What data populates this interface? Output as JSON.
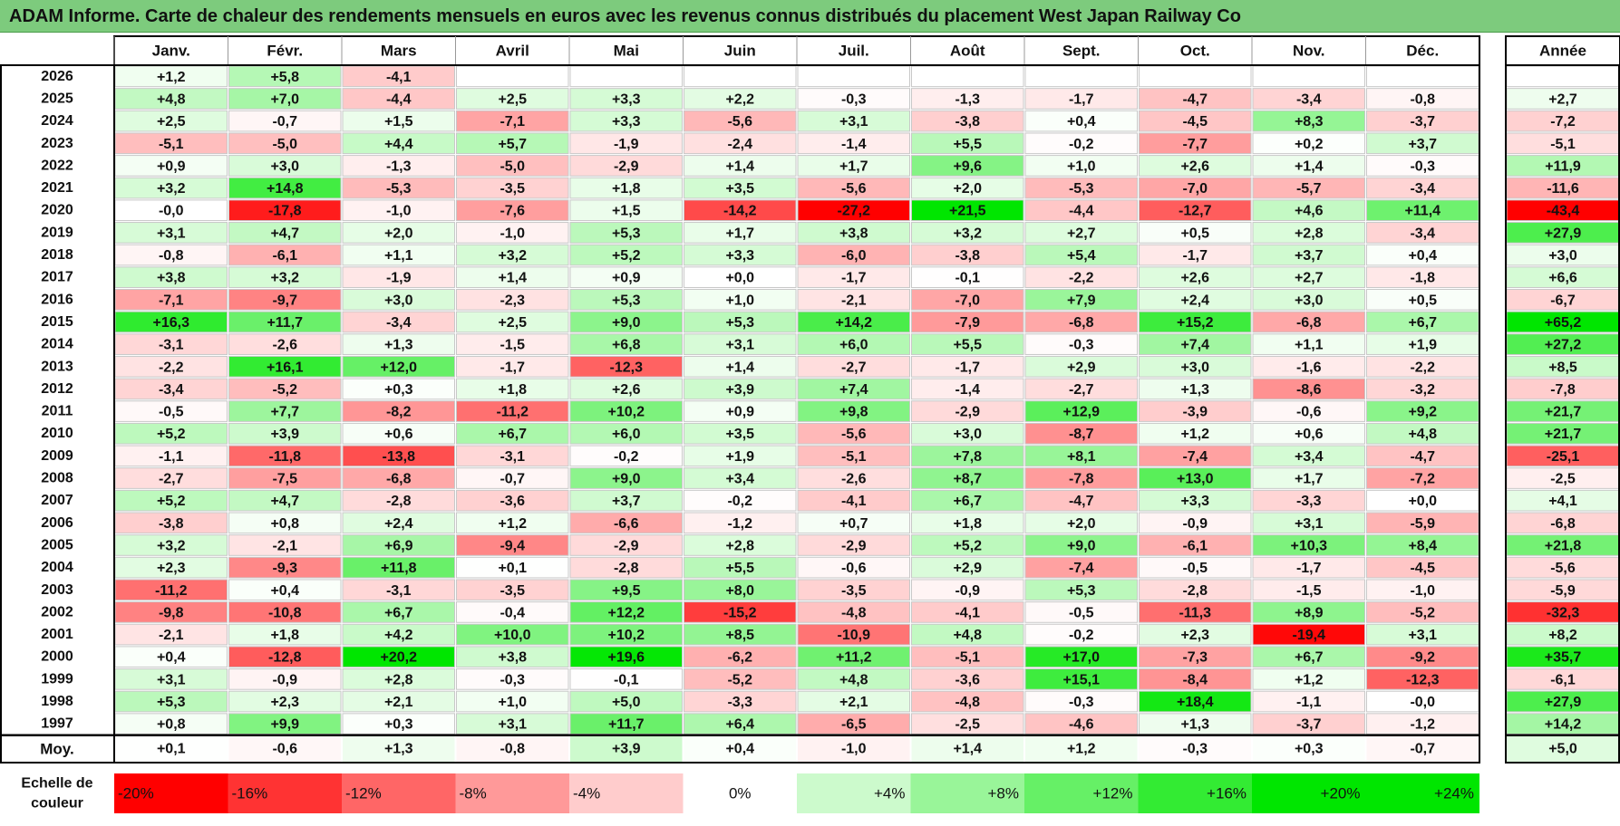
{
  "title": "ADAM Informe. Carte de chaleur des rendements mensuels en euros avec les revenus connus distribués du placement West Japan Railway Co",
  "chart_data": {
    "type": "heatmap",
    "title": "ADAM Informe. Carte de chaleur des rendements mensuels en euros avec les revenus connus distribués du placement West Japan Railway Co",
    "columns": [
      "Janv.",
      "Févr.",
      "Mars",
      "Avril",
      "Mai",
      "Juin",
      "Juil.",
      "Août",
      "Sept.",
      "Oct.",
      "Nov.",
      "Déc."
    ],
    "year_header": "Année",
    "rows": [
      {
        "year": "2026",
        "values": [
          "+1,2",
          "+5,8",
          "-4,1",
          "",
          "",
          "",
          "",
          "",
          "",
          "",
          "",
          ""
        ],
        "annual": ""
      },
      {
        "year": "2025",
        "values": [
          "+4,8",
          "+7,0",
          "-4,4",
          "+2,5",
          "+3,3",
          "+2,2",
          "-0,3",
          "-1,3",
          "-1,7",
          "-4,7",
          "-3,4",
          "-0,8"
        ],
        "annual": "+2,7"
      },
      {
        "year": "2024",
        "values": [
          "+2,5",
          "-0,7",
          "+1,5",
          "-7,1",
          "+3,3",
          "-5,6",
          "+3,1",
          "-3,8",
          "+0,4",
          "-4,5",
          "+8,3",
          "-3,7"
        ],
        "annual": "-7,2"
      },
      {
        "year": "2023",
        "values": [
          "-5,1",
          "-5,0",
          "+4,4",
          "+5,7",
          "-1,9",
          "-2,4",
          "-1,4",
          "+5,5",
          "-0,2",
          "-7,7",
          "+0,2",
          "+3,7"
        ],
        "annual": "-5,1"
      },
      {
        "year": "2022",
        "values": [
          "+0,9",
          "+3,0",
          "-1,3",
          "-5,0",
          "-2,9",
          "+1,4",
          "+1,7",
          "+9,6",
          "+1,0",
          "+2,6",
          "+1,4",
          "-0,3"
        ],
        "annual": "+11,9"
      },
      {
        "year": "2021",
        "values": [
          "+3,2",
          "+14,8",
          "-5,3",
          "-3,5",
          "+1,8",
          "+3,5",
          "-5,6",
          "+2,0",
          "-5,3",
          "-7,0",
          "-5,7",
          "-3,4"
        ],
        "annual": "-11,6"
      },
      {
        "year": "2020",
        "values": [
          "-0,0",
          "-17,8",
          "-1,0",
          "-7,6",
          "+1,5",
          "-14,2",
          "-27,2",
          "+21,5",
          "-4,4",
          "-12,7",
          "+4,6",
          "+11,4"
        ],
        "annual": "-43,4"
      },
      {
        "year": "2019",
        "values": [
          "+3,1",
          "+4,7",
          "+2,0",
          "-1,0",
          "+5,3",
          "+1,7",
          "+3,8",
          "+3,2",
          "+2,7",
          "+0,5",
          "+2,8",
          "-3,4"
        ],
        "annual": "+27,9"
      },
      {
        "year": "2018",
        "values": [
          "-0,8",
          "-6,1",
          "+1,1",
          "+3,2",
          "+5,2",
          "+3,3",
          "-6,0",
          "-3,8",
          "+5,4",
          "-1,7",
          "+3,7",
          "+0,4"
        ],
        "annual": "+3,0"
      },
      {
        "year": "2017",
        "values": [
          "+3,8",
          "+3,2",
          "-1,9",
          "+1,4",
          "+0,9",
          "+0,0",
          "-1,7",
          "-0,1",
          "-2,2",
          "+2,6",
          "+2,7",
          "-1,8"
        ],
        "annual": "+6,6"
      },
      {
        "year": "2016",
        "values": [
          "-7,1",
          "-9,7",
          "+3,0",
          "-2,3",
          "+5,3",
          "+1,0",
          "-2,1",
          "-7,0",
          "+7,9",
          "+2,4",
          "+3,0",
          "+0,5"
        ],
        "annual": "-6,7"
      },
      {
        "year": "2015",
        "values": [
          "+16,3",
          "+11,7",
          "-3,4",
          "+2,5",
          "+9,0",
          "+5,3",
          "+14,2",
          "-7,9",
          "-6,8",
          "+15,2",
          "-6,8",
          "+6,7"
        ],
        "annual": "+65,2"
      },
      {
        "year": "2014",
        "values": [
          "-3,1",
          "-2,6",
          "+1,3",
          "-1,5",
          "+6,8",
          "+3,1",
          "+6,0",
          "+5,5",
          "-0,3",
          "+7,4",
          "+1,1",
          "+1,9"
        ],
        "annual": "+27,2"
      },
      {
        "year": "2013",
        "values": [
          "-2,2",
          "+16,1",
          "+12,0",
          "-1,7",
          "-12,3",
          "+1,4",
          "-2,7",
          "-1,7",
          "+2,9",
          "+3,0",
          "-1,6",
          "-2,2"
        ],
        "annual": "+8,5"
      },
      {
        "year": "2012",
        "values": [
          "-3,4",
          "-5,2",
          "+0,3",
          "+1,8",
          "+2,6",
          "+3,9",
          "+7,4",
          "-1,4",
          "-2,7",
          "+1,3",
          "-8,6",
          "-3,2"
        ],
        "annual": "-7,8"
      },
      {
        "year": "2011",
        "values": [
          "-0,5",
          "+7,7",
          "-8,2",
          "-11,2",
          "+10,2",
          "+0,9",
          "+9,8",
          "-2,9",
          "+12,9",
          "-3,9",
          "-0,6",
          "+9,2"
        ],
        "annual": "+21,7"
      },
      {
        "year": "2010",
        "values": [
          "+5,2",
          "+3,9",
          "+0,6",
          "+6,7",
          "+6,0",
          "+3,5",
          "-5,6",
          "+3,0",
          "-8,7",
          "+1,2",
          "+0,6",
          "+4,8"
        ],
        "annual": "+21,7"
      },
      {
        "year": "2009",
        "values": [
          "-1,1",
          "-11,8",
          "-13,8",
          "-3,1",
          "-0,2",
          "+1,9",
          "-5,1",
          "+7,8",
          "+8,1",
          "-7,4",
          "+3,4",
          "-4,7"
        ],
        "annual": "-25,1"
      },
      {
        "year": "2008",
        "values": [
          "-2,7",
          "-7,5",
          "-6,8",
          "-0,7",
          "+9,0",
          "+3,4",
          "-2,6",
          "+8,7",
          "-7,8",
          "+13,0",
          "+1,7",
          "-7,2"
        ],
        "annual": "-2,5"
      },
      {
        "year": "2007",
        "values": [
          "+5,2",
          "+4,7",
          "-2,8",
          "-3,6",
          "+3,7",
          "-0,2",
          "-4,1",
          "+6,7",
          "-4,7",
          "+3,3",
          "-3,3",
          "+0,0"
        ],
        "annual": "+4,1"
      },
      {
        "year": "2006",
        "values": [
          "-3,8",
          "+0,8",
          "+2,4",
          "+1,2",
          "-6,6",
          "-1,2",
          "+0,7",
          "+1,8",
          "+2,0",
          "-0,9",
          "+3,1",
          "-5,9"
        ],
        "annual": "-6,8"
      },
      {
        "year": "2005",
        "values": [
          "+3,2",
          "-2,1",
          "+6,9",
          "-9,4",
          "-2,9",
          "+2,8",
          "-2,9",
          "+5,2",
          "+9,0",
          "-6,1",
          "+10,3",
          "+8,4"
        ],
        "annual": "+21,8"
      },
      {
        "year": "2004",
        "values": [
          "+2,3",
          "-9,3",
          "+11,8",
          "+0,1",
          "-2,8",
          "+5,5",
          "-0,6",
          "+2,9",
          "-7,4",
          "-0,5",
          "-1,7",
          "-4,5"
        ],
        "annual": "-5,6"
      },
      {
        "year": "2003",
        "values": [
          "-11,2",
          "+0,4",
          "-3,1",
          "-3,5",
          "+9,5",
          "+8,0",
          "-3,5",
          "-0,9",
          "+5,3",
          "-2,8",
          "-1,5",
          "-1,0"
        ],
        "annual": "-5,9"
      },
      {
        "year": "2002",
        "values": [
          "-9,8",
          "-10,8",
          "+6,7",
          "-0,4",
          "+12,2",
          "-15,2",
          "-4,8",
          "-4,1",
          "-0,5",
          "-11,3",
          "+8,9",
          "-5,2"
        ],
        "annual": "-32,3"
      },
      {
        "year": "2001",
        "values": [
          "-2,1",
          "+1,8",
          "+4,2",
          "+10,0",
          "+10,2",
          "+8,5",
          "-10,9",
          "+4,8",
          "-0,2",
          "+2,3",
          "-19,4",
          "+3,1"
        ],
        "annual": "+8,2"
      },
      {
        "year": "2000",
        "values": [
          "+0,4",
          "-12,8",
          "+20,2",
          "+3,8",
          "+19,6",
          "-6,2",
          "+11,2",
          "-5,1",
          "+17,0",
          "-7,3",
          "+6,7",
          "-9,2"
        ],
        "annual": "+35,7"
      },
      {
        "year": "1999",
        "values": [
          "+3,1",
          "-0,9",
          "+2,8",
          "-0,3",
          "-0,1",
          "-5,2",
          "+4,8",
          "-3,6",
          "+15,1",
          "-8,4",
          "+1,2",
          "-12,3"
        ],
        "annual": "-6,1"
      },
      {
        "year": "1998",
        "values": [
          "+5,3",
          "+2,3",
          "+2,1",
          "+1,0",
          "+5,0",
          "-3,3",
          "+2,1",
          "-4,8",
          "-0,3",
          "+18,4",
          "-1,1",
          "-0,0"
        ],
        "annual": "+27,9"
      },
      {
        "year": "1997",
        "values": [
          "+0,8",
          "+9,9",
          "+0,3",
          "+3,1",
          "+11,7",
          "+6,4",
          "-6,5",
          "-2,5",
          "-4,6",
          "+1,3",
          "-3,7",
          "-1,2"
        ],
        "annual": "+14,2"
      }
    ],
    "average": {
      "label": "Moy.",
      "values": [
        "+0,1",
        "-0,6",
        "+1,3",
        "-0,8",
        "+3,9",
        "+0,4",
        "-1,0",
        "+1,4",
        "+1,2",
        "-0,3",
        "+0,3",
        "-0,7"
      ],
      "annual": "+5,0"
    },
    "color_scale": {
      "label_line1": "Echelle de",
      "label_line2": "couleur",
      "stops": [
        "-20%",
        "-16%",
        "-12%",
        "-8%",
        "-4%",
        "0%",
        "+4%",
        "+8%",
        "+12%",
        "+16%",
        "+20%",
        "+24%"
      ]
    },
    "colors": {
      "negative": "#ff0000",
      "neutral": "#ffffff",
      "positive": "#00e600",
      "title_bg": "#7dcb7d"
    }
  }
}
